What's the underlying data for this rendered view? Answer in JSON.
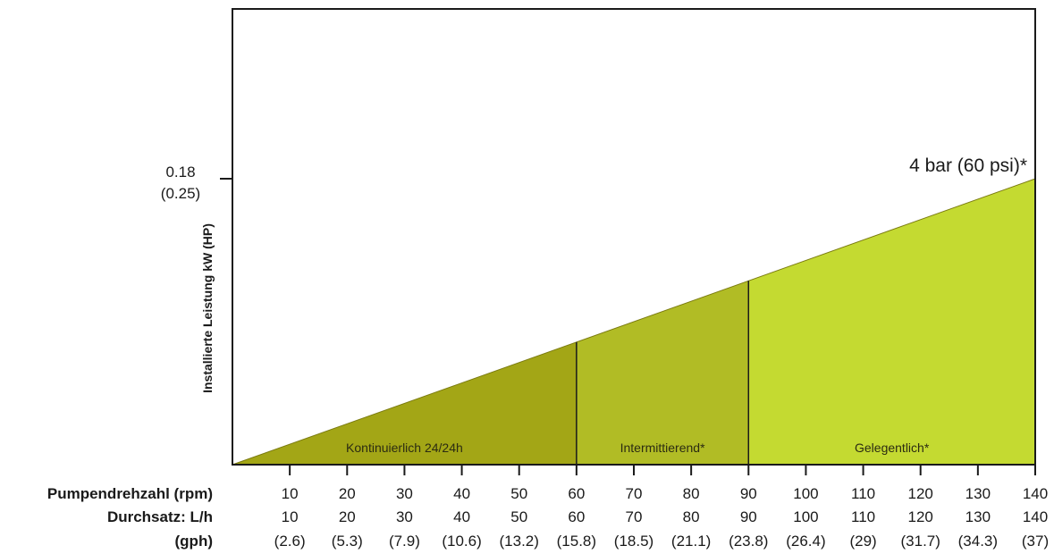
{
  "chart_data": {
    "type": "area",
    "title": "",
    "ylabel": "Installierte Leistung kW (HP)",
    "y_tick": {
      "value": 0.18,
      "label": "0.18",
      "sublabel": "(0.25)"
    },
    "ylim": [
      0,
      0.18
    ],
    "xlim": [
      0,
      140
    ],
    "grid": false,
    "curve": {
      "label": "4 bar (60 psi)*",
      "x": [
        0,
        140
      ],
      "y": [
        0,
        0.18
      ]
    },
    "zones": [
      {
        "label": "Kontinuierlich 24/24h",
        "x_start": 0,
        "x_end": 60,
        "color": "#a3a616"
      },
      {
        "label": "Intermittierend*",
        "x_start": 60,
        "x_end": 90,
        "color": "#b1bc25"
      },
      {
        "label": "Gelegentlich*",
        "x_start": 90,
        "x_end": 140,
        "color": "#c4da31"
      }
    ],
    "x_rows": [
      {
        "label": "Pumpendrehzahl (rpm)",
        "values": [
          "10",
          "20",
          "30",
          "40",
          "50",
          "60",
          "70",
          "80",
          "90",
          "100",
          "110",
          "120",
          "130",
          "140"
        ]
      },
      {
        "label": "Durchsatz: L/h",
        "values": [
          "10",
          "20",
          "30",
          "40",
          "50",
          "60",
          "70",
          "80",
          "90",
          "100",
          "110",
          "120",
          "130",
          "140"
        ]
      },
      {
        "label": "(gph)",
        "values": [
          "(2.6)",
          "(5.3)",
          "(7.9)",
          "(10.6)",
          "(13.2)",
          "(15.8)",
          "(18.5)",
          "(21.1)",
          "(23.8)",
          "(26.4)",
          "(29)",
          "(31.7)",
          "(34.3)",
          "(37)"
        ]
      }
    ],
    "x_ticks": [
      10,
      20,
      30,
      40,
      50,
      60,
      70,
      80,
      90,
      100,
      110,
      120,
      130,
      140
    ]
  }
}
